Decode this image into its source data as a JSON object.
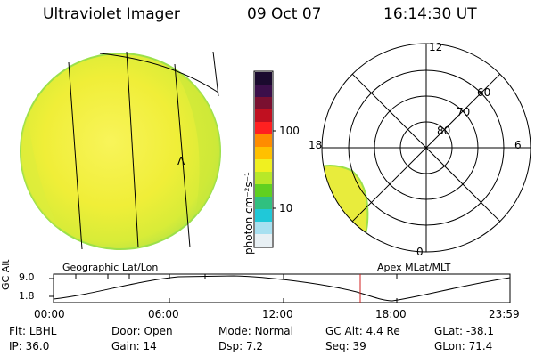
{
  "header": {
    "title": "Ultraviolet Imager",
    "date": "09 Oct 07",
    "time": "16:14:30 UT"
  },
  "colorbar": {
    "unit_label": "photon cm⁻²s⁻¹",
    "ticks": [
      "100",
      "10"
    ],
    "colors": [
      "#1a0a2e",
      "#3b0f4a",
      "#7a1030",
      "#c01020",
      "#ff2020",
      "#ff8c00",
      "#ffc000",
      "#f0f020",
      "#b8e828",
      "#60d020",
      "#30c080",
      "#20c8d8",
      "#a8e0f0",
      "#e8f0f4"
    ]
  },
  "globe_left": {
    "marker": "Λ",
    "fill_color": "#f4f040",
    "edge_color": "#9be04a"
  },
  "polar_right": {
    "labels": {
      "top": "12",
      "right": "6",
      "left": "18",
      "bottom": "0"
    },
    "ring_labels": [
      "60",
      "70",
      "80"
    ]
  },
  "timeline": {
    "left_title": "Geographic Lat/Lon",
    "right_title": "Apex MLat/MLT",
    "y_axis_label": "GC Alt",
    "y_ticks": [
      "9.0",
      "1.8"
    ],
    "x_ticks": [
      "00:00",
      "06:00",
      "12:00",
      "18:00",
      "23:59"
    ],
    "current_marker_color": "#d02020"
  },
  "status": {
    "row1": [
      {
        "key": "Flt:",
        "value": "LBHL"
      },
      {
        "key": "Door:",
        "value": "Open"
      },
      {
        "key": "Mode:",
        "value": "Normal"
      },
      {
        "key": "GC Alt:",
        "value": "4.4 Re"
      },
      {
        "key": "GLat:",
        "value": "-38.1"
      }
    ],
    "row2": [
      {
        "key": "IP:",
        "value": "36.0"
      },
      {
        "key": "Gain:",
        "value": "14"
      },
      {
        "key": "Dsp:",
        "value": "7.2"
      },
      {
        "key": "Seq:",
        "value": "39"
      },
      {
        "key": "GLon:",
        "value": "71.4"
      }
    ]
  }
}
